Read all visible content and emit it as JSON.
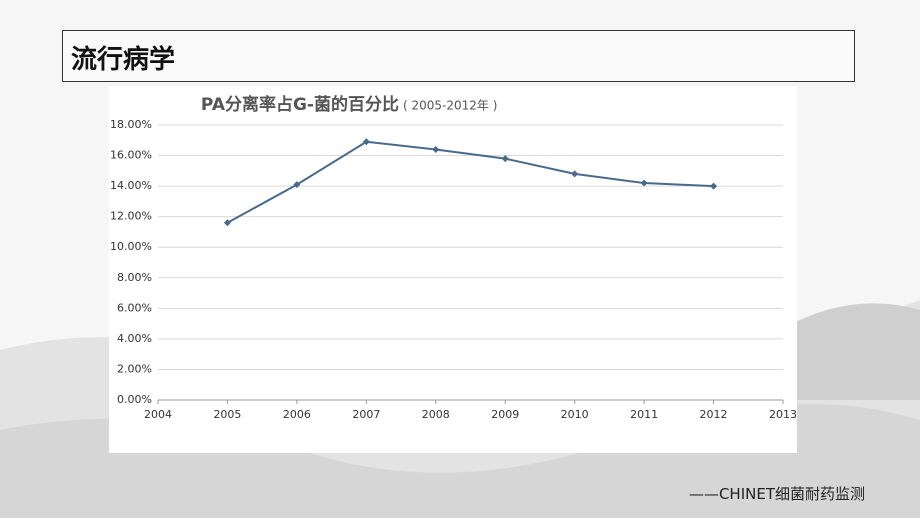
{
  "header": {
    "title": "流行病学"
  },
  "chart_data": {
    "type": "line",
    "title": "PA分离率占G-菌的百分比",
    "subtitle": "( 2005-2012年 )",
    "x": [
      2005,
      2006,
      2007,
      2008,
      2009,
      2010,
      2011,
      2012
    ],
    "series": [
      {
        "name": "PA",
        "color": "#4a6a8c",
        "values": [
          11.6,
          14.1,
          16.9,
          16.4,
          15.8,
          14.8,
          14.2,
          14.0
        ]
      }
    ],
    "xlim": [
      2004,
      2013
    ],
    "xticks": [
      2004,
      2005,
      2006,
      2007,
      2008,
      2009,
      2010,
      2011,
      2012,
      2013
    ],
    "ylim": [
      0,
      18
    ],
    "yticks": [
      {
        "value": 0,
        "label": "0.00%"
      },
      {
        "value": 2,
        "label": "2.00%"
      },
      {
        "value": 4,
        "label": "4.00%"
      },
      {
        "value": 6,
        "label": "6.00%"
      },
      {
        "value": 8,
        "label": "8.00%"
      },
      {
        "value": 10,
        "label": "10.00%"
      },
      {
        "value": 12,
        "label": "12.00%"
      },
      {
        "value": 14,
        "label": "14.00%"
      },
      {
        "value": 16,
        "label": "16.00%"
      },
      {
        "value": 18,
        "label": "18.00%"
      }
    ],
    "grid": true
  },
  "footer": {
    "source": "——CHINET细菌耐药监测"
  }
}
